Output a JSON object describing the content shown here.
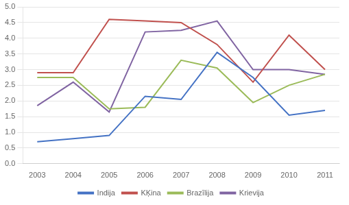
{
  "chart_data": {
    "type": "line",
    "x": [
      2003,
      2004,
      2005,
      2006,
      2007,
      2008,
      2009,
      2010,
      2011
    ],
    "xlim": [
      2002.6,
      2011.4
    ],
    "xticks": [
      2003,
      2004,
      2005,
      2006,
      2007,
      2008,
      2009,
      2010,
      2011
    ],
    "series": [
      {
        "name": "Indija",
        "color": "#4472C4",
        "values": [
          0.7,
          0.8,
          0.9,
          2.15,
          2.05,
          3.55,
          2.75,
          1.55,
          1.7
        ]
      },
      {
        "name": "KĶina",
        "color": "#C0504D",
        "values": [
          2.9,
          2.9,
          4.6,
          4.55,
          4.5,
          3.8,
          2.6,
          4.1,
          3.0
        ]
      },
      {
        "name": "Brazīlija",
        "color": "#9BBB59",
        "values": [
          2.75,
          2.75,
          1.75,
          1.8,
          3.3,
          3.05,
          1.95,
          2.5,
          2.85
        ]
      },
      {
        "name": "Krievija",
        "color": "#8064A2",
        "values": [
          1.85,
          2.6,
          1.65,
          4.2,
          4.25,
          4.55,
          3.0,
          3.0,
          2.85
        ]
      }
    ],
    "ylim": [
      0.0,
      5.0
    ],
    "yticks": [
      {
        "value": 0,
        "label": "0.0"
      },
      0.5,
      {
        "value": 1,
        "label": "1.0"
      },
      1.5,
      {
        "value": 2,
        "label": "2.0"
      },
      2.5,
      {
        "value": 3,
        "label": "3.0"
      },
      3.5,
      {
        "value": 4,
        "label": "4.0"
      },
      4.5,
      {
        "value": 5,
        "label": "5.0"
      }
    ],
    "grid": "y",
    "legend": "bottom",
    "marker": "none"
  }
}
